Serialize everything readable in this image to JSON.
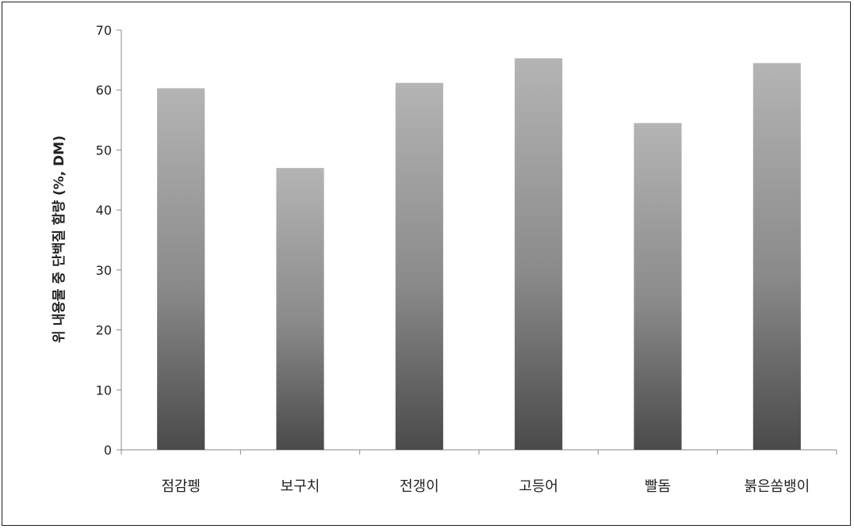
{
  "chart_data": {
    "type": "bar",
    "title": "",
    "xlabel": "",
    "ylabel": "위 내용물 중 단백질 함량 (%, DM)",
    "categories": [
      "점감펭",
      "보구치",
      "전갱이",
      "고등어",
      "빨돔",
      "붉은쏨뱅이"
    ],
    "values": [
      60.3,
      47.0,
      61.2,
      65.3,
      54.5,
      64.5
    ],
    "ylim": [
      0,
      70
    ],
    "yticks": [
      0,
      10,
      20,
      30,
      40,
      50,
      60,
      70
    ],
    "grid": false,
    "legend": "none"
  },
  "colors": {
    "bar_top": "#b4b4b4",
    "bar_bottom": "#4a4a4a",
    "axis": "#888888",
    "text": "#222222"
  }
}
